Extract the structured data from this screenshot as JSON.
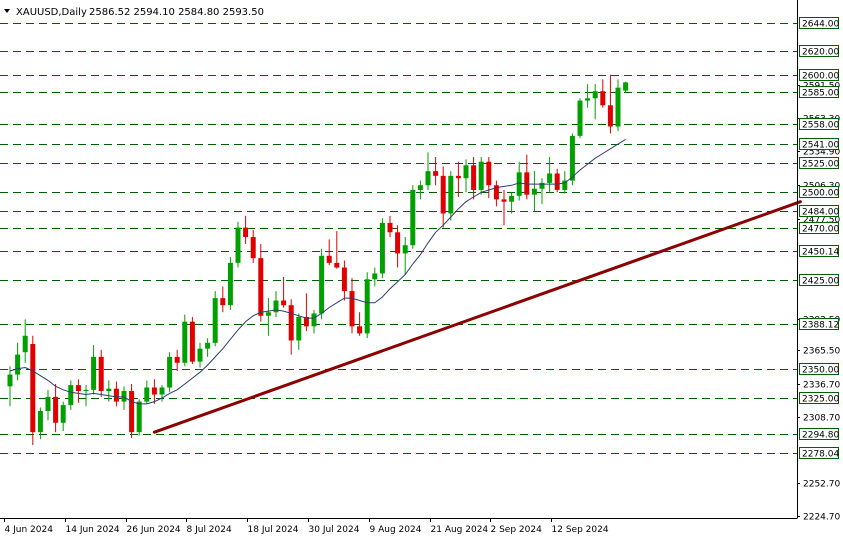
{
  "header": {
    "symbol": "XAUUSD,Daily",
    "ohlc": "2586.52 2594.10 2584.80 2593.50"
  },
  "colors": {
    "bull": "#00a000",
    "bear": "#e00000",
    "level_line": "#006000",
    "trendline": "#8b0000",
    "moving_average": "#2a3f6b",
    "tag_background": "#ffffff"
  },
  "chart_data": {
    "type": "candlestick",
    "title": "XAUUSD,Daily",
    "ylim": [
      2224.7,
      2652.0
    ],
    "price_axis_ticks": [
      {
        "label": "2224.70",
        "value": 2224.7
      },
      {
        "label": "2252.70",
        "value": 2252.7
      },
      {
        "label": "2308.70",
        "value": 2308.7
      },
      {
        "label": "2336.70",
        "value": 2336.7
      },
      {
        "label": "2365.50",
        "value": 2365.5
      },
      {
        "label": "2392.50",
        "value": 2392.5
      },
      {
        "label": "2477.50",
        "value": 2477.5
      },
      {
        "label": "2506.30",
        "value": 2506.3
      },
      {
        "label": "2534.90",
        "value": 2534.9
      },
      {
        "label": "2563.30",
        "value": 2563.3
      },
      {
        "label": "2591.50",
        "value": 2591.5
      }
    ],
    "levels": [
      {
        "label": "2644.00",
        "value": 2644.0
      },
      {
        "label": "2620.00",
        "value": 2620.0
      },
      {
        "label": "2600.00",
        "value": 2600.0
      },
      {
        "label": "2585.00",
        "value": 2585.0
      },
      {
        "label": "2558.00",
        "value": 2558.0
      },
      {
        "label": "2541.00",
        "value": 2541.0
      },
      {
        "label": "2525.00",
        "value": 2525.0
      },
      {
        "label": "2500.00",
        "value": 2500.0
      },
      {
        "label": "2484.00",
        "value": 2484.0
      },
      {
        "label": "2470.00",
        "value": 2470.0
      },
      {
        "label": "2450.14",
        "value": 2450.14
      },
      {
        "label": "2425.00",
        "value": 2425.0
      },
      {
        "label": "2388.12",
        "value": 2388.12
      },
      {
        "label": "2350.00",
        "value": 2350.0
      },
      {
        "label": "2325.00",
        "value": 2325.0
      },
      {
        "label": "2294.80",
        "value": 2294.8
      },
      {
        "label": "2278.04",
        "value": 2278.04
      }
    ],
    "x_labels": [
      {
        "label": "4 Jun 2024",
        "index": 0
      },
      {
        "label": "14 Jun 2024",
        "index": 8
      },
      {
        "label": "26 Jun 2024",
        "index": 16
      },
      {
        "label": "8 Jul 2024",
        "index": 24
      },
      {
        "label": "18 Jul 2024",
        "index": 32
      },
      {
        "label": "30 Jul 2024",
        "index": 40
      },
      {
        "label": "9 Aug 2024",
        "index": 48
      },
      {
        "label": "21 Aug 2024",
        "index": 56
      },
      {
        "label": "2 Sep 2024",
        "index": 64
      },
      {
        "label": "12 Sep 2024",
        "index": 72
      }
    ],
    "candles": [
      [
        2335,
        2352,
        2318,
        2345
      ],
      [
        2345,
        2372,
        2340,
        2362
      ],
      [
        2364,
        2392,
        2355,
        2378
      ],
      [
        2371,
        2378,
        2285,
        2296
      ],
      [
        2296,
        2317,
        2290,
        2314
      ],
      [
        2314,
        2332,
        2306,
        2326
      ],
      [
        2326,
        2337,
        2296,
        2304
      ],
      [
        2304,
        2322,
        2297,
        2319
      ],
      [
        2319,
        2340,
        2315,
        2336
      ],
      [
        2336,
        2341,
        2321,
        2331
      ],
      [
        2331,
        2336,
        2318,
        2332
      ],
      [
        2332,
        2370,
        2328,
        2360
      ],
      [
        2360,
        2366,
        2326,
        2331
      ],
      [
        2331,
        2340,
        2322,
        2333
      ],
      [
        2333,
        2339,
        2318,
        2322
      ],
      [
        2322,
        2335,
        2315,
        2331
      ],
      [
        2331,
        2337,
        2291,
        2296
      ],
      [
        2296,
        2324,
        2293,
        2322
      ],
      [
        2322,
        2340,
        2320,
        2334
      ],
      [
        2334,
        2341,
        2320,
        2328
      ],
      [
        2328,
        2336,
        2322,
        2334
      ],
      [
        2334,
        2364,
        2330,
        2360
      ],
      [
        2360,
        2366,
        2348,
        2355
      ],
      [
        2355,
        2396,
        2352,
        2390
      ],
      [
        2390,
        2394,
        2354,
        2356
      ],
      [
        2356,
        2372,
        2351,
        2367
      ],
      [
        2367,
        2376,
        2360,
        2372
      ],
      [
        2372,
        2416,
        2369,
        2410
      ],
      [
        2410,
        2420,
        2398,
        2404
      ],
      [
        2404,
        2445,
        2400,
        2440
      ],
      [
        2440,
        2475,
        2436,
        2470
      ],
      [
        2470,
        2480,
        2456,
        2462
      ],
      [
        2462,
        2468,
        2440,
        2444
      ],
      [
        2444,
        2456,
        2390,
        2395
      ],
      [
        2395,
        2410,
        2378,
        2398
      ],
      [
        2398,
        2416,
        2394,
        2408
      ],
      [
        2408,
        2428,
        2402,
        2404
      ],
      [
        2404,
        2409,
        2362,
        2374
      ],
      [
        2374,
        2397,
        2366,
        2394
      ],
      [
        2394,
        2414,
        2382,
        2386
      ],
      [
        2386,
        2400,
        2380,
        2397
      ],
      [
        2397,
        2452,
        2392,
        2446
      ],
      [
        2446,
        2460,
        2438,
        2440
      ],
      [
        2440,
        2467,
        2435,
        2436
      ],
      [
        2436,
        2442,
        2408,
        2416
      ],
      [
        2416,
        2427,
        2380,
        2386
      ],
      [
        2386,
        2398,
        2378,
        2380
      ],
      [
        2380,
        2432,
        2376,
        2426
      ],
      [
        2426,
        2436,
        2420,
        2431
      ],
      [
        2431,
        2478,
        2427,
        2474
      ],
      [
        2474,
        2480,
        2462,
        2466
      ],
      [
        2466,
        2472,
        2436,
        2448
      ],
      [
        2448,
        2462,
        2430,
        2455
      ],
      [
        2455,
        2506,
        2452,
        2502
      ],
      [
        2502,
        2510,
        2494,
        2506
      ],
      [
        2506,
        2534,
        2502,
        2518
      ],
      [
        2518,
        2530,
        2506,
        2514
      ],
      [
        2514,
        2522,
        2470,
        2482
      ],
      [
        2482,
        2518,
        2476,
        2514
      ],
      [
        2514,
        2526,
        2496,
        2512
      ],
      [
        2512,
        2528,
        2500,
        2523
      ],
      [
        2523,
        2530,
        2494,
        2502
      ],
      [
        2502,
        2530,
        2498,
        2526
      ],
      [
        2526,
        2530,
        2495,
        2506
      ],
      [
        2506,
        2510,
        2488,
        2494
      ],
      [
        2494,
        2502,
        2472,
        2492
      ],
      [
        2492,
        2500,
        2482,
        2497
      ],
      [
        2497,
        2526,
        2493,
        2517
      ],
      [
        2517,
        2532,
        2494,
        2498
      ],
      [
        2498,
        2518,
        2484,
        2503
      ],
      [
        2503,
        2512,
        2490,
        2508
      ],
      [
        2508,
        2530,
        2500,
        2516
      ],
      [
        2516,
        2520,
        2500,
        2502
      ],
      [
        2502,
        2518,
        2499,
        2510
      ],
      [
        2510,
        2550,
        2506,
        2548
      ],
      [
        2548,
        2580,
        2546,
        2578
      ],
      [
        2578,
        2592,
        2572,
        2580
      ],
      [
        2580,
        2592,
        2562,
        2586
      ],
      [
        2586,
        2596,
        2572,
        2574
      ],
      [
        2574,
        2600,
        2550,
        2556
      ],
      [
        2556,
        2596,
        2552,
        2589
      ],
      [
        2586.52,
        2594.1,
        2584.8,
        2593.5
      ]
    ],
    "moving_average": [
      2348,
      2350,
      2351,
      2348,
      2344,
      2340,
      2335,
      2332,
      2330,
      2329,
      2328,
      2329,
      2328,
      2327,
      2326,
      2326,
      2322,
      2320,
      2320,
      2322,
      2325,
      2329,
      2332,
      2337,
      2342,
      2347,
      2353,
      2360,
      2367,
      2375,
      2383,
      2390,
      2395,
      2398,
      2399,
      2400,
      2399,
      2397,
      2395,
      2393,
      2393,
      2397,
      2402,
      2406,
      2410,
      2410,
      2408,
      2406,
      2406,
      2411,
      2418,
      2424,
      2430,
      2439,
      2447,
      2457,
      2466,
      2472,
      2479,
      2486,
      2492,
      2496,
      2500,
      2502,
      2504,
      2505,
      2506,
      2508,
      2507,
      2507,
      2507,
      2507,
      2507,
      2508,
      2513,
      2519,
      2524,
      2529,
      2533,
      2537,
      2541,
      2545
    ],
    "trendline": {
      "from": {
        "index": 19,
        "value": 2296
      },
      "to": {
        "index": 104,
        "value": 2492
      }
    }
  }
}
